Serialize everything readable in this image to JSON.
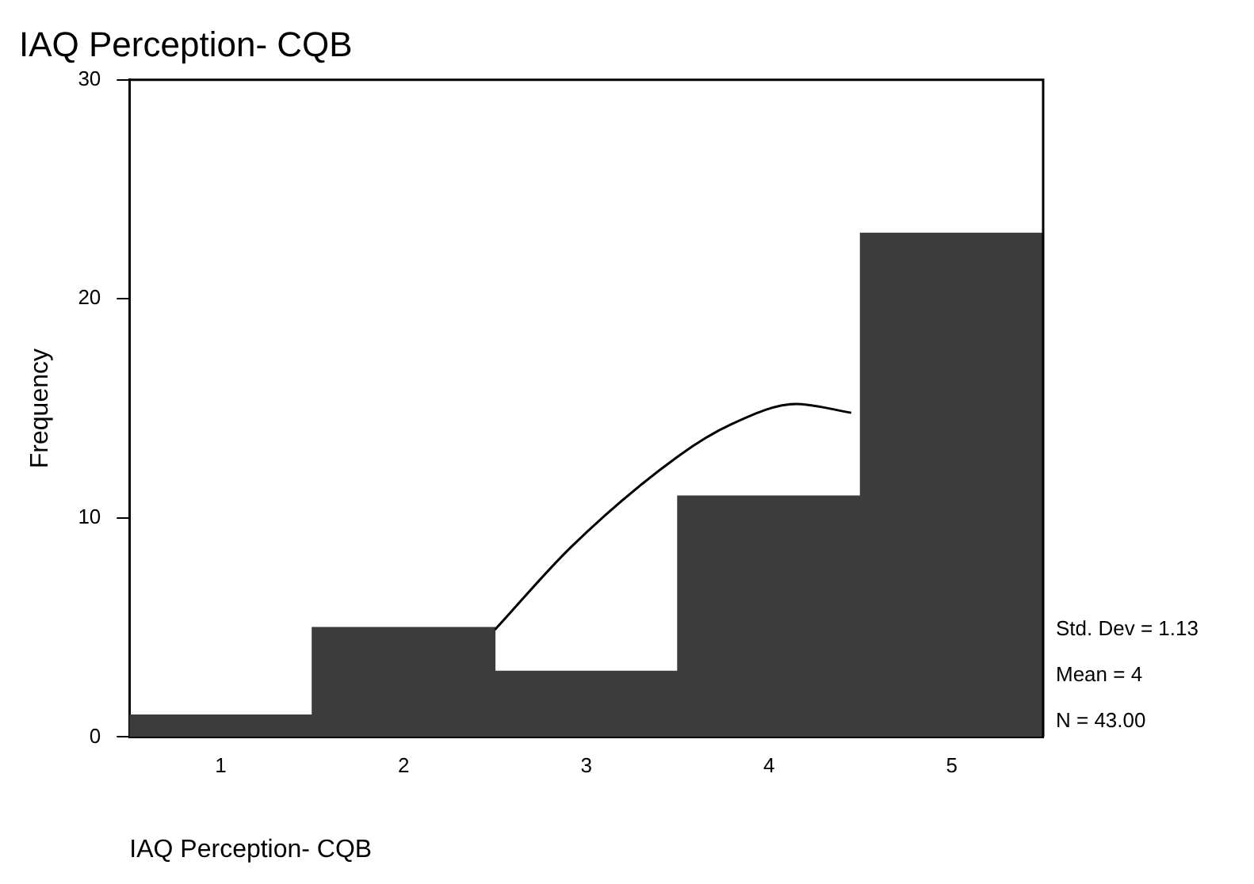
{
  "chart_data": {
    "type": "histogram",
    "title": "IAQ Perception- CQB",
    "xlabel": "IAQ Perception- CQB",
    "ylabel": "Frequency",
    "bins": [
      0.5,
      1.5,
      2.5,
      3.5,
      4.5,
      5.5
    ],
    "values": [
      1,
      5,
      3,
      11,
      23
    ],
    "color": "#3c3c3c",
    "series": [
      {
        "type": "line",
        "color": "#000000",
        "x": [
          2.5,
          2.92,
          3.5,
          3.8,
          4.15,
          4.45
        ],
        "values": [
          4.9,
          8.7,
          12.8,
          14.3,
          15.2,
          14.8
        ]
      }
    ],
    "xlim": [
      0.5,
      5.5
    ],
    "xticks": [
      1,
      2,
      3,
      4,
      5
    ],
    "ylim": [
      0,
      30
    ],
    "yticks": [
      0,
      10,
      20,
      30
    ],
    "annotations": [
      "Std. Dev = 1.13",
      "Mean = 4",
      "N = 43.00"
    ],
    "grid": false,
    "legend": false,
    "marker": "none",
    "line_style": "solid"
  }
}
